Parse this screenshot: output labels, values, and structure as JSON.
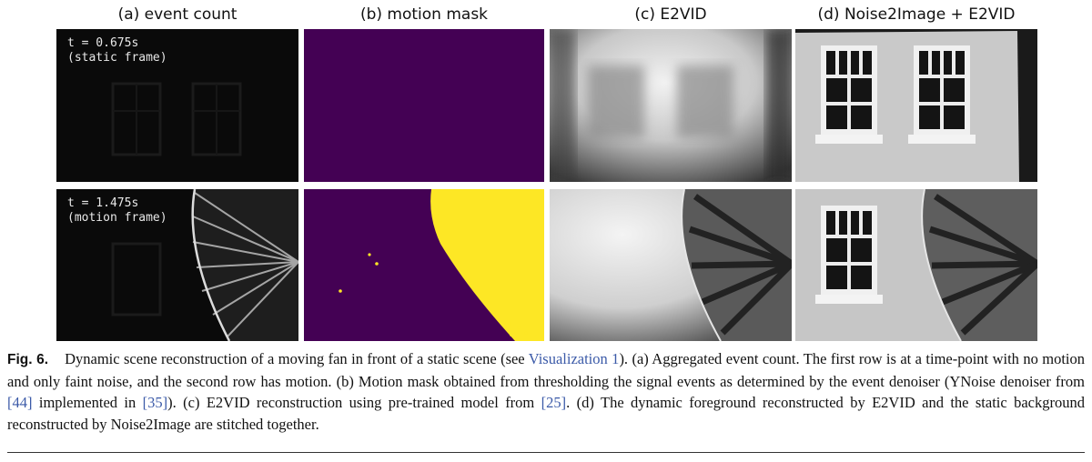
{
  "figure": {
    "columns": [
      {
        "label": "(a) event count"
      },
      {
        "label": "(b) motion mask"
      },
      {
        "label": "(c) E2VID"
      },
      {
        "label": "(d) Noise2Image + E2VID"
      }
    ],
    "rows": [
      {
        "time": "t = 0.675s",
        "frame": "(static frame)"
      },
      {
        "time": "t = 1.475s",
        "frame": "(motion frame)"
      }
    ]
  },
  "caption": {
    "fig_label": "Fig. 6.",
    "text_1": "Dynamic scene reconstruction of a moving fan in front of a static scene (see ",
    "link": "Visualization 1",
    "text_2": "). (a) Aggregated event count. The first row is at a time-point with no motion and only faint noise, and the second row has motion. (b) Motion mask obtained from thresholding the signal events as determined by the event denoiser (YNoise denoiser from ",
    "ref_44": "[44]",
    "text_3": " implemented in ",
    "ref_35": "[35]",
    "text_4": "). (c) E2VID reconstruction using pre-trained model from ",
    "ref_25": "[25]",
    "text_5": ". (d) The dynamic foreground reconstructed by E2VID and the static background reconstructed by Noise2Image are stitched together."
  },
  "colors": {
    "mask_background": "#440154",
    "mask_foreground": "#fde725",
    "link": "#3b5aa8"
  }
}
